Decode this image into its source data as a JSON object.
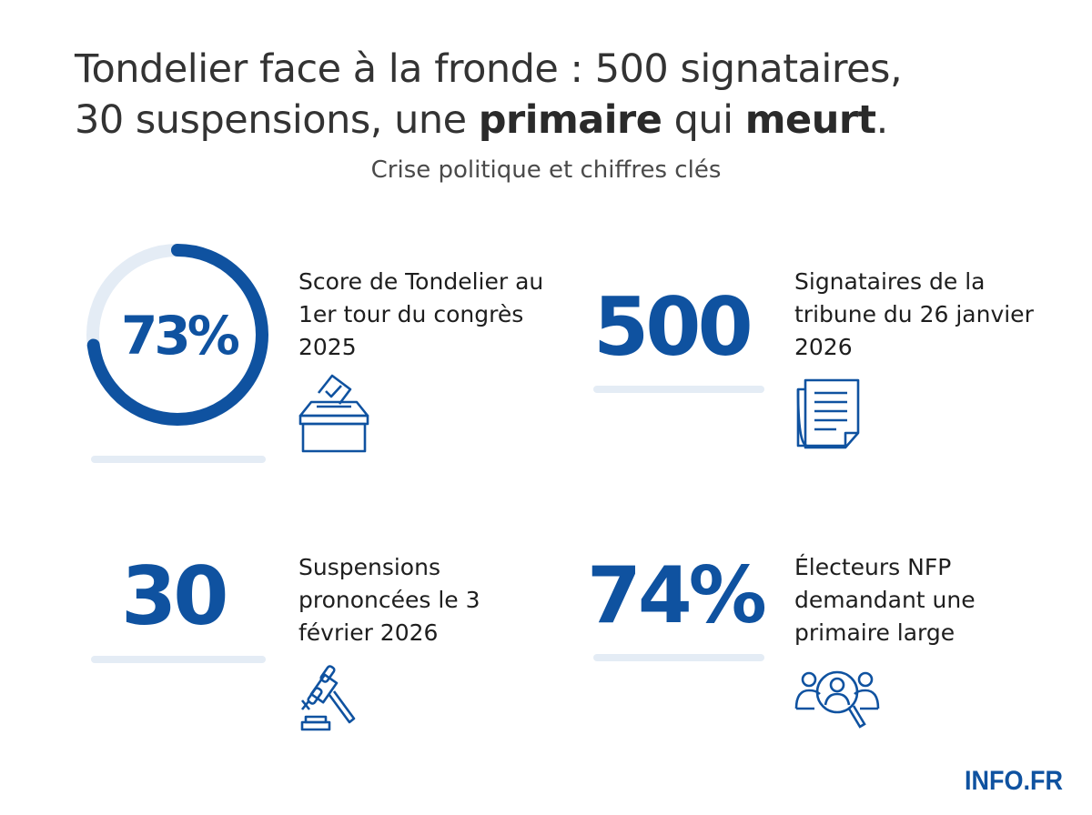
{
  "header": {
    "title_line1": "Tondelier face à la fronde : 500 signataires,",
    "title_line2_a": "30 suspensions, une ",
    "title_line2_b": "primaire",
    "title_line2_c": " qui ",
    "title_line2_d": "meurt",
    "title_line2_e": ".",
    "subtitle": "Crise politique et chiffres clés"
  },
  "stats": [
    {
      "value": "73%",
      "label": "Score de Tondelier au 1er tour du congrès 2025",
      "icon": "ballot-box-icon",
      "gauge_percent": 73
    },
    {
      "value": "500",
      "label": "Signataires de la tribune du 26 janvier 2026",
      "icon": "document-icon"
    },
    {
      "value": "30",
      "label": "Suspensions prononcées le 3 février 2026",
      "icon": "gavel-icon"
    },
    {
      "value": "74%",
      "label": "Électeurs NFP demandant une primaire large",
      "icon": "people-search-icon"
    }
  ],
  "brand": "INFO.FR",
  "colors": {
    "accent": "#0f52a0",
    "track": "#e4ecf5",
    "text": "#262626"
  }
}
